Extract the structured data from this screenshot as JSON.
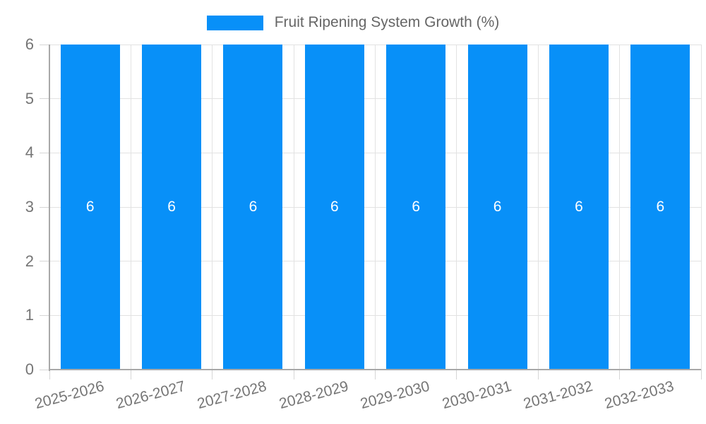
{
  "chart_data": {
    "type": "bar",
    "title": "Fruit Ripening System Growth (%)",
    "categories": [
      "2025-2026",
      "2026-2027",
      "2027-2028",
      "2028-2029",
      "2029-2030",
      "2030-2031",
      "2031-2032",
      "2032-2033"
    ],
    "values": [
      6,
      6,
      6,
      6,
      6,
      6,
      6,
      6
    ],
    "bar_value_labels": [
      "6",
      "6",
      "6",
      "6",
      "6",
      "6",
      "6",
      "6"
    ],
    "xlabel": "",
    "ylabel": "",
    "ylim": [
      0,
      6
    ],
    "yticks": [
      0,
      1,
      2,
      3,
      4,
      5,
      6
    ],
    "grid": true,
    "legend_position": "top",
    "colors": {
      "bar": "#0890f8",
      "grid_line": "#e2e2e2",
      "tick_mark": "#d6d6d6",
      "axis_line": "#a8a8a8",
      "tick_text": "#757575",
      "legend_text": "#666666",
      "bar_value_text": "#ffffff"
    }
  }
}
